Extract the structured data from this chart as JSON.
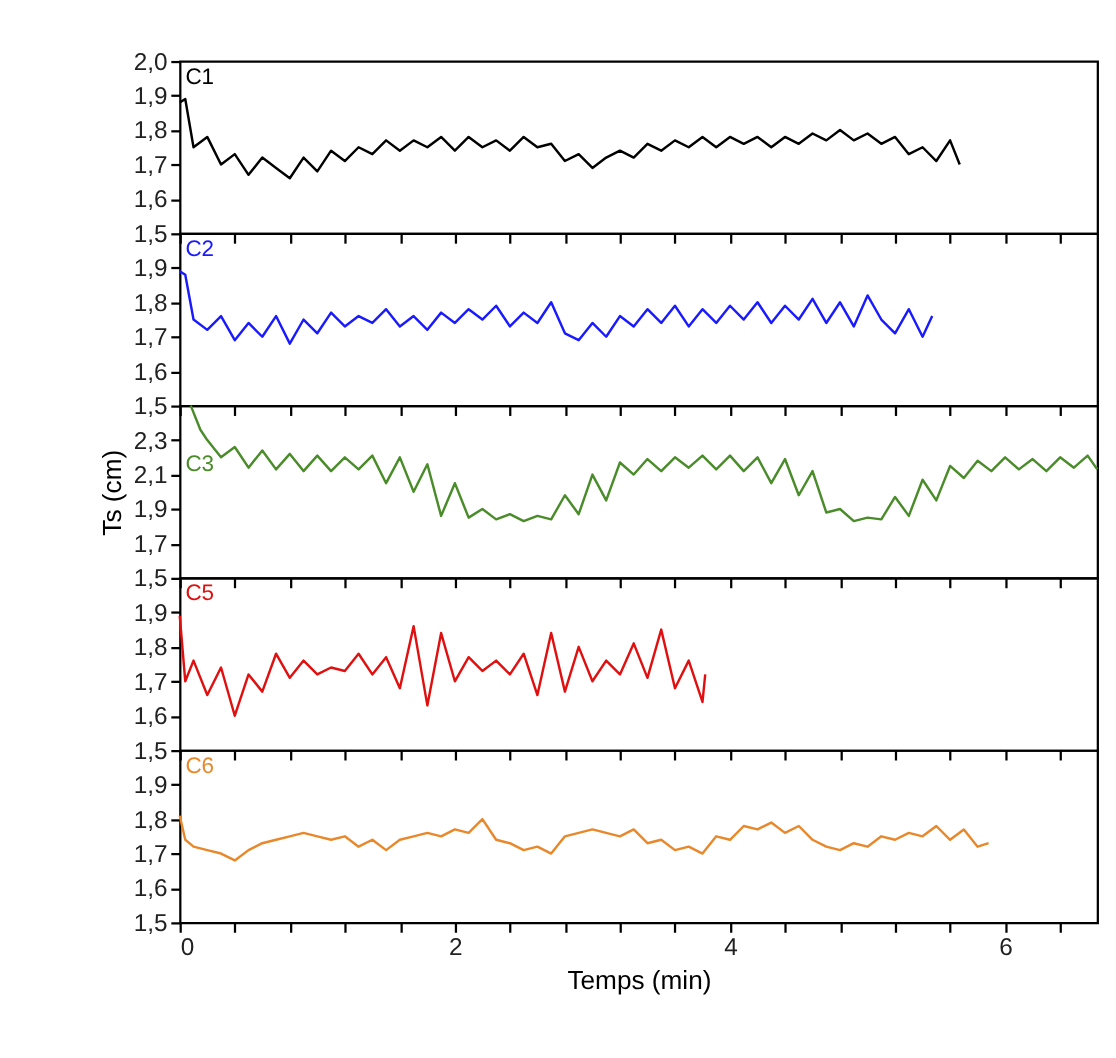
{
  "chart_data": [
    {
      "type": "line",
      "x": [
        0,
        0.04,
        0.1,
        0.2,
        0.3,
        0.4,
        0.5,
        0.6,
        0.7,
        0.8,
        0.9,
        1.0,
        1.1,
        1.2,
        1.3,
        1.4,
        1.5,
        1.6,
        1.7,
        1.8,
        1.9,
        2.0,
        2.1,
        2.2,
        2.3,
        2.4,
        2.5,
        2.6,
        2.7,
        2.8,
        2.9,
        3.0,
        3.1,
        3.2,
        3.3,
        3.4,
        3.5,
        3.6,
        3.7,
        3.8,
        3.9,
        4.0,
        4.1,
        4.2,
        4.3,
        4.4,
        4.5,
        4.6,
        4.7,
        4.8,
        4.9,
        5.0,
        5.1,
        5.2,
        5.3,
        5.4,
        5.5,
        5.6,
        5.67
      ],
      "series": [
        {
          "name": "C1",
          "color": "#000000",
          "values": [
            1.88,
            1.89,
            1.75,
            1.78,
            1.7,
            1.73,
            1.67,
            1.72,
            1.69,
            1.66,
            1.72,
            1.68,
            1.74,
            1.71,
            1.75,
            1.73,
            1.77,
            1.74,
            1.77,
            1.75,
            1.78,
            1.74,
            1.78,
            1.75,
            1.77,
            1.74,
            1.78,
            1.75,
            1.76,
            1.71,
            1.73,
            1.69,
            1.72,
            1.74,
            1.72,
            1.76,
            1.74,
            1.77,
            1.75,
            1.78,
            1.75,
            1.78,
            1.76,
            1.78,
            1.75,
            1.78,
            1.76,
            1.79,
            1.77,
            1.8,
            1.77,
            1.79,
            1.76,
            1.78,
            1.73,
            1.75,
            1.71,
            1.77,
            1.7
          ]
        }
      ],
      "xlim": [
        0,
        6.67
      ],
      "xticks": [
        0,
        {
          "value": 0.4,
          "label": null
        },
        {
          "value": 0.8,
          "label": null
        },
        {
          "value": 1.2,
          "label": null
        },
        {
          "value": 1.6,
          "label": null
        },
        2,
        {
          "value": 2.4,
          "label": null
        },
        {
          "value": 2.8,
          "label": null
        },
        {
          "value": 3.2,
          "label": null
        },
        {
          "value": 3.6,
          "label": null
        },
        4,
        {
          "value": 4.4,
          "label": null
        },
        {
          "value": 4.8,
          "label": null
        },
        {
          "value": 5.2,
          "label": null
        },
        {
          "value": 5.6,
          "label": null
        },
        6,
        {
          "value": 6.4,
          "label": null
        }
      ],
      "ylim": [
        1.5,
        2.0
      ],
      "yticks": [
        {
          "value": 1.5,
          "label": "1,5"
        },
        {
          "value": 1.6,
          "label": "1,6"
        },
        {
          "value": 1.7,
          "label": "1,7"
        },
        {
          "value": 1.8,
          "label": "1,8"
        },
        {
          "value": 1.9,
          "label": "1,9"
        },
        {
          "value": 2.0,
          "label": "2,0"
        }
      ],
      "tick_labels": "y"
    },
    {
      "type": "line",
      "x": [
        0,
        0.04,
        0.1,
        0.2,
        0.3,
        0.4,
        0.5,
        0.6,
        0.7,
        0.8,
        0.9,
        1.0,
        1.1,
        1.2,
        1.3,
        1.4,
        1.5,
        1.6,
        1.7,
        1.8,
        1.9,
        2.0,
        2.1,
        2.2,
        2.3,
        2.4,
        2.5,
        2.6,
        2.7,
        2.8,
        2.9,
        3.0,
        3.1,
        3.2,
        3.3,
        3.4,
        3.5,
        3.6,
        3.7,
        3.8,
        3.9,
        4.0,
        4.1,
        4.2,
        4.3,
        4.4,
        4.5,
        4.6,
        4.7,
        4.8,
        4.9,
        5.0,
        5.1,
        5.2,
        5.3,
        5.4,
        5.47
      ],
      "series": [
        {
          "name": "C2",
          "color": "#1a1aff",
          "values": [
            1.89,
            1.88,
            1.75,
            1.72,
            1.76,
            1.69,
            1.74,
            1.7,
            1.76,
            1.68,
            1.75,
            1.71,
            1.77,
            1.73,
            1.76,
            1.74,
            1.78,
            1.73,
            1.76,
            1.72,
            1.77,
            1.74,
            1.78,
            1.75,
            1.79,
            1.73,
            1.77,
            1.74,
            1.8,
            1.71,
            1.69,
            1.74,
            1.7,
            1.76,
            1.73,
            1.78,
            1.74,
            1.79,
            1.73,
            1.78,
            1.74,
            1.79,
            1.75,
            1.8,
            1.74,
            1.79,
            1.75,
            1.81,
            1.74,
            1.8,
            1.73,
            1.82,
            1.75,
            1.71,
            1.78,
            1.7,
            1.76
          ]
        }
      ],
      "xlim": [
        0,
        6.67
      ],
      "xticks": [
        0,
        {
          "value": 0.4,
          "label": null
        },
        {
          "value": 0.8,
          "label": null
        },
        {
          "value": 1.2,
          "label": null
        },
        {
          "value": 1.6,
          "label": null
        },
        2,
        {
          "value": 2.4,
          "label": null
        },
        {
          "value": 2.8,
          "label": null
        },
        {
          "value": 3.2,
          "label": null
        },
        {
          "value": 3.6,
          "label": null
        },
        4,
        {
          "value": 4.4,
          "label": null
        },
        {
          "value": 4.8,
          "label": null
        },
        {
          "value": 5.2,
          "label": null
        },
        {
          "value": 5.6,
          "label": null
        },
        6,
        {
          "value": 6.4,
          "label": null
        }
      ],
      "ylim": [
        1.5,
        2.0
      ],
      "yticks": [
        {
          "value": 1.5,
          "label": "1,5"
        },
        {
          "value": 1.6,
          "label": "1,6"
        },
        {
          "value": 1.7,
          "label": "1,7"
        },
        {
          "value": 1.8,
          "label": "1,8"
        },
        {
          "value": 1.9,
          "label": "1,9"
        }
      ],
      "tick_labels": "y"
    },
    {
      "type": "line",
      "ylabel": "Ts (cm)",
      "x": [
        0.08,
        0.15,
        0.2,
        0.3,
        0.4,
        0.5,
        0.6,
        0.7,
        0.8,
        0.9,
        1.0,
        1.1,
        1.2,
        1.3,
        1.4,
        1.5,
        1.6,
        1.7,
        1.8,
        1.9,
        2.0,
        2.1,
        2.2,
        2.3,
        2.4,
        2.5,
        2.6,
        2.7,
        2.8,
        2.9,
        3.0,
        3.1,
        3.2,
        3.3,
        3.4,
        3.5,
        3.6,
        3.7,
        3.8,
        3.9,
        4.0,
        4.1,
        4.2,
        4.3,
        4.4,
        4.5,
        4.6,
        4.7,
        4.8,
        4.9,
        5.0,
        5.1,
        5.2,
        5.3,
        5.4,
        5.5,
        5.6,
        5.7,
        5.8,
        5.9,
        6.0,
        6.1,
        6.2,
        6.3,
        6.4,
        6.5,
        6.6,
        6.67
      ],
      "series": [
        {
          "name": "C3",
          "color": "#4a8c2a",
          "values": [
            2.5,
            2.36,
            2.3,
            2.2,
            2.26,
            2.14,
            2.24,
            2.13,
            2.22,
            2.12,
            2.21,
            2.12,
            2.2,
            2.13,
            2.21,
            2.05,
            2.2,
            2.0,
            2.16,
            1.86,
            2.05,
            1.85,
            1.9,
            1.84,
            1.87,
            1.83,
            1.86,
            1.84,
            1.98,
            1.87,
            2.1,
            1.95,
            2.17,
            2.1,
            2.19,
            2.12,
            2.2,
            2.14,
            2.21,
            2.13,
            2.21,
            2.12,
            2.2,
            2.05,
            2.19,
            1.98,
            2.12,
            1.88,
            1.9,
            1.83,
            1.85,
            1.84,
            1.97,
            1.86,
            2.07,
            1.95,
            2.15,
            2.08,
            2.18,
            2.12,
            2.2,
            2.13,
            2.19,
            2.12,
            2.2,
            2.14,
            2.21,
            2.13
          ]
        }
      ],
      "xlim": [
        0,
        6.67
      ],
      "xticks": [
        0,
        {
          "value": 0.4,
          "label": null
        },
        {
          "value": 0.8,
          "label": null
        },
        {
          "value": 1.2,
          "label": null
        },
        {
          "value": 1.6,
          "label": null
        },
        2,
        {
          "value": 2.4,
          "label": null
        },
        {
          "value": 2.8,
          "label": null
        },
        {
          "value": 3.2,
          "label": null
        },
        {
          "value": 3.6,
          "label": null
        },
        4,
        {
          "value": 4.4,
          "label": null
        },
        {
          "value": 4.8,
          "label": null
        },
        {
          "value": 5.2,
          "label": null
        },
        {
          "value": 5.6,
          "label": null
        },
        6,
        {
          "value": 6.4,
          "label": null
        }
      ],
      "ylim": [
        1.5,
        2.5
      ],
      "yticks": [
        {
          "value": 1.5,
          "label": "1,5"
        },
        {
          "value": 1.7,
          "label": "1,7"
        },
        {
          "value": 1.9,
          "label": "1,9"
        },
        {
          "value": 2.1,
          "label": "2,1"
        },
        {
          "value": 2.3,
          "label": "2,3"
        }
      ],
      "tick_labels": "y"
    },
    {
      "type": "line",
      "x": [
        0,
        0.04,
        0.1,
        0.2,
        0.3,
        0.4,
        0.5,
        0.6,
        0.7,
        0.8,
        0.9,
        1.0,
        1.1,
        1.2,
        1.3,
        1.4,
        1.5,
        1.6,
        1.7,
        1.8,
        1.9,
        2.0,
        2.1,
        2.2,
        2.3,
        2.4,
        2.5,
        2.6,
        2.7,
        2.8,
        2.9,
        3.0,
        3.1,
        3.2,
        3.3,
        3.4,
        3.5,
        3.6,
        3.7,
        3.8,
        3.82
      ],
      "series": [
        {
          "name": "C5",
          "color": "#e01010",
          "values": [
            1.89,
            1.7,
            1.76,
            1.66,
            1.74,
            1.6,
            1.72,
            1.67,
            1.78,
            1.71,
            1.76,
            1.72,
            1.74,
            1.73,
            1.78,
            1.72,
            1.77,
            1.68,
            1.86,
            1.63,
            1.84,
            1.7,
            1.77,
            1.73,
            1.76,
            1.72,
            1.78,
            1.66,
            1.84,
            1.67,
            1.8,
            1.7,
            1.76,
            1.72,
            1.81,
            1.71,
            1.85,
            1.68,
            1.76,
            1.64,
            1.72
          ]
        }
      ],
      "xlim": [
        0,
        6.67
      ],
      "xticks": [
        0,
        {
          "value": 0.4,
          "label": null
        },
        {
          "value": 0.8,
          "label": null
        },
        {
          "value": 1.2,
          "label": null
        },
        {
          "value": 1.6,
          "label": null
        },
        2,
        {
          "value": 2.4,
          "label": null
        },
        {
          "value": 2.8,
          "label": null
        },
        {
          "value": 3.2,
          "label": null
        },
        {
          "value": 3.6,
          "label": null
        },
        4,
        {
          "value": 4.4,
          "label": null
        },
        {
          "value": 4.8,
          "label": null
        },
        {
          "value": 5.2,
          "label": null
        },
        {
          "value": 5.6,
          "label": null
        },
        6,
        {
          "value": 6.4,
          "label": null
        }
      ],
      "ylim": [
        1.5,
        2.0
      ],
      "yticks": [
        {
          "value": 1.5,
          "label": "1,5"
        },
        {
          "value": 1.6,
          "label": "1,6"
        },
        {
          "value": 1.7,
          "label": "1,7"
        },
        {
          "value": 1.8,
          "label": "1,8"
        },
        {
          "value": 1.9,
          "label": "1,9"
        }
      ],
      "tick_labels": "y"
    },
    {
      "type": "line",
      "xlabel": "Temps (min)",
      "x": [
        0,
        0.04,
        0.1,
        0.2,
        0.3,
        0.4,
        0.5,
        0.6,
        0.7,
        0.8,
        0.9,
        1.0,
        1.1,
        1.2,
        1.3,
        1.4,
        1.5,
        1.6,
        1.7,
        1.8,
        1.9,
        2.0,
        2.1,
        2.2,
        2.3,
        2.4,
        2.5,
        2.6,
        2.7,
        2.8,
        2.9,
        3.0,
        3.1,
        3.2,
        3.3,
        3.4,
        3.5,
        3.6,
        3.7,
        3.8,
        3.9,
        4.0,
        4.1,
        4.2,
        4.3,
        4.4,
        4.5,
        4.6,
        4.7,
        4.8,
        4.9,
        5.0,
        5.1,
        5.2,
        5.3,
        5.4,
        5.5,
        5.6,
        5.7,
        5.8,
        5.88
      ],
      "series": [
        {
          "name": "C6",
          "color": "#e8882a",
          "values": [
            1.81,
            1.74,
            1.72,
            1.71,
            1.7,
            1.68,
            1.71,
            1.73,
            1.74,
            1.75,
            1.76,
            1.75,
            1.74,
            1.75,
            1.72,
            1.74,
            1.71,
            1.74,
            1.75,
            1.76,
            1.75,
            1.77,
            1.76,
            1.8,
            1.74,
            1.73,
            1.71,
            1.72,
            1.7,
            1.75,
            1.76,
            1.77,
            1.76,
            1.75,
            1.77,
            1.73,
            1.74,
            1.71,
            1.72,
            1.7,
            1.75,
            1.74,
            1.78,
            1.77,
            1.79,
            1.76,
            1.78,
            1.74,
            1.72,
            1.71,
            1.73,
            1.72,
            1.75,
            1.74,
            1.76,
            1.75,
            1.78,
            1.74,
            1.77,
            1.72,
            1.73
          ]
        }
      ],
      "xlim": [
        0,
        6.67
      ],
      "xticks": [
        0,
        {
          "value": 0.4,
          "label": null
        },
        {
          "value": 0.8,
          "label": null
        },
        {
          "value": 1.2,
          "label": null
        },
        {
          "value": 1.6,
          "label": null
        },
        2,
        {
          "value": 2.4,
          "label": null
        },
        {
          "value": 2.8,
          "label": null
        },
        {
          "value": 3.2,
          "label": null
        },
        {
          "value": 3.6,
          "label": null
        },
        4,
        {
          "value": 4.4,
          "label": null
        },
        {
          "value": 4.8,
          "label": null
        },
        {
          "value": 5.2,
          "label": null
        },
        {
          "value": 5.6,
          "label": null
        },
        6,
        {
          "value": 6.4,
          "label": null
        }
      ],
      "ylim": [
        1.5,
        2.0
      ],
      "yticks": [
        {
          "value": 1.5,
          "label": "1,5"
        },
        {
          "value": 1.6,
          "label": "1,6"
        },
        {
          "value": 1.7,
          "label": "1,7"
        },
        {
          "value": 1.8,
          "label": "1,8"
        },
        {
          "value": 1.9,
          "label": "1,9"
        }
      ]
    }
  ]
}
